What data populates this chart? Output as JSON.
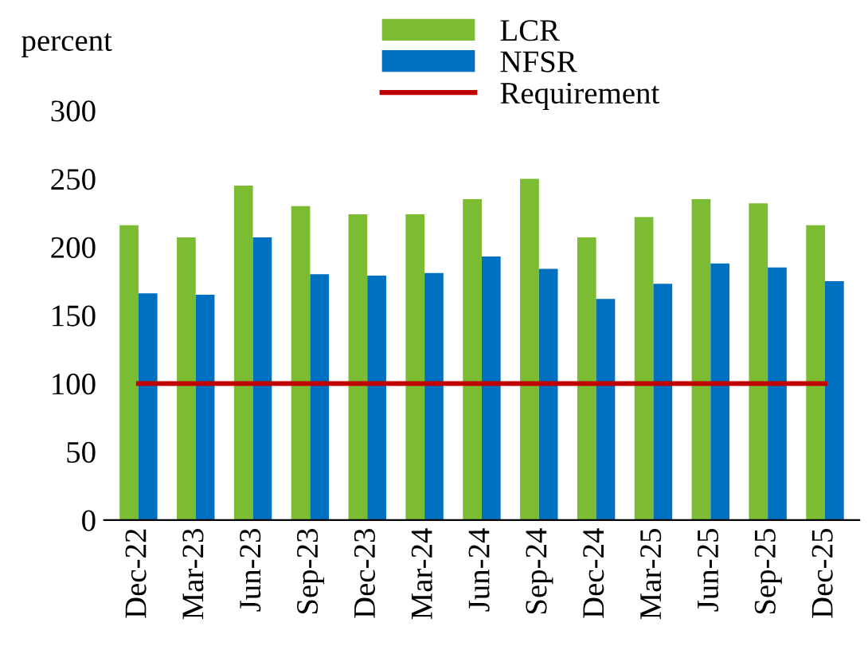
{
  "chart_data": {
    "type": "bar",
    "ylabel": "percent",
    "categories": [
      "Dec-22",
      "Mar-23",
      "Jun-23",
      "Sep-23",
      "Dec-23",
      "Mar-24",
      "Jun-24",
      "Sep-24",
      "Dec-24",
      "Mar-25",
      "Jun-25",
      "Sep-25",
      "Dec-25"
    ],
    "series": [
      {
        "name": "LCR",
        "color": "#7cbc33",
        "values": [
          216,
          207,
          245,
          230,
          224,
          224,
          235,
          250,
          207,
          222,
          235,
          232,
          216
        ]
      },
      {
        "name": "NFSR",
        "color": "#0070c0",
        "values": [
          166,
          165,
          207,
          180,
          179,
          181,
          193,
          184,
          162,
          173,
          188,
          185,
          175
        ]
      },
      {
        "name": "Requirement",
        "type": "line",
        "color": "#c00000",
        "values": [
          100,
          100,
          100,
          100,
          100,
          100,
          100,
          100,
          100,
          100,
          100,
          100,
          100
        ]
      }
    ],
    "ylim": [
      0,
      300
    ],
    "yticks": [
      0,
      50,
      100,
      150,
      200,
      250,
      300
    ],
    "grid": false,
    "legend": "top"
  }
}
